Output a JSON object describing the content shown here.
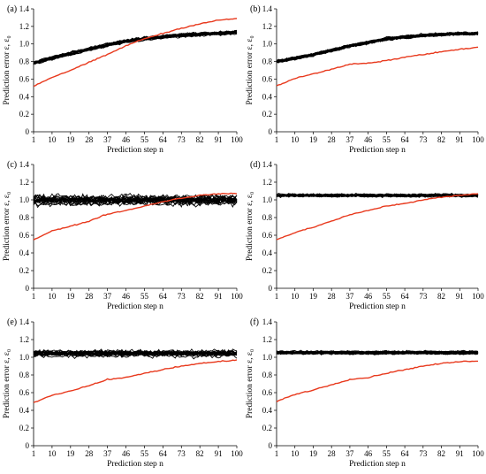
{
  "figure": {
    "panels_order": [
      "a",
      "b",
      "c",
      "d",
      "e",
      "f"
    ]
  },
  "chart_data": [
    {
      "id": "a",
      "panel_label": "(a)",
      "type": "line",
      "xlabel": "Prediction step n",
      "ylabel": "Prediction error ε, ε₀",
      "xticks": [
        1,
        10,
        19,
        28,
        37,
        46,
        55,
        64,
        73,
        82,
        91,
        100
      ],
      "yticks": [
        "0",
        "0.2",
        "0.4",
        "0.6",
        "0.8",
        "1.0",
        "1.2",
        "1.4"
      ],
      "xlim": [
        1,
        100
      ],
      "ylim": [
        0,
        1.4
      ],
      "black_series": {
        "count": 20,
        "color": "#000000",
        "band": "narrow",
        "mean_points": [
          [
            1,
            0.78
          ],
          [
            10,
            0.84
          ],
          [
            19,
            0.89
          ],
          [
            28,
            0.94
          ],
          [
            37,
            0.99
          ],
          [
            46,
            1.03
          ],
          [
            55,
            1.06
          ],
          [
            64,
            1.08
          ],
          [
            73,
            1.1
          ],
          [
            82,
            1.11
          ],
          [
            91,
            1.12
          ],
          [
            100,
            1.13
          ]
        ]
      },
      "red_series": {
        "color": "#e8391d",
        "points": [
          [
            1,
            0.52
          ],
          [
            10,
            0.62
          ],
          [
            19,
            0.7
          ],
          [
            28,
            0.79
          ],
          [
            37,
            0.88
          ],
          [
            46,
            0.98
          ],
          [
            55,
            1.06
          ],
          [
            64,
            1.12
          ],
          [
            73,
            1.18
          ],
          [
            82,
            1.23
          ],
          [
            91,
            1.27
          ],
          [
            100,
            1.29
          ]
        ]
      }
    },
    {
      "id": "b",
      "panel_label": "(b)",
      "type": "line",
      "xlabel": "Prediction step n",
      "ylabel": "Prediction error ε, ε₀",
      "xticks": [
        1,
        10,
        19,
        28,
        37,
        46,
        55,
        64,
        73,
        82,
        91,
        100
      ],
      "yticks": [
        "0",
        "0.2",
        "0.4",
        "0.6",
        "0.8",
        "1.0",
        "1.2",
        "1.4"
      ],
      "xlim": [
        1,
        100
      ],
      "ylim": [
        0,
        1.4
      ],
      "black_series": {
        "count": 20,
        "color": "#000000",
        "band": "narrow",
        "mean_points": [
          [
            1,
            0.8
          ],
          [
            10,
            0.84
          ],
          [
            19,
            0.88
          ],
          [
            28,
            0.93
          ],
          [
            37,
            0.98
          ],
          [
            46,
            1.02
          ],
          [
            55,
            1.06
          ],
          [
            64,
            1.08
          ],
          [
            73,
            1.1
          ],
          [
            82,
            1.11
          ],
          [
            91,
            1.12
          ],
          [
            100,
            1.12
          ]
        ]
      },
      "red_series": {
        "color": "#e8391d",
        "points": [
          [
            1,
            0.52
          ],
          [
            10,
            0.61
          ],
          [
            19,
            0.66
          ],
          [
            28,
            0.71
          ],
          [
            37,
            0.77
          ],
          [
            46,
            0.78
          ],
          [
            55,
            0.81
          ],
          [
            64,
            0.85
          ],
          [
            73,
            0.88
          ],
          [
            82,
            0.91
          ],
          [
            91,
            0.94
          ],
          [
            100,
            0.96
          ]
        ]
      }
    },
    {
      "id": "c",
      "panel_label": "(c)",
      "type": "line",
      "xlabel": "Prediction step n",
      "ylabel": "Prediction error ε, ε₀",
      "xticks": [
        1,
        10,
        19,
        28,
        37,
        46,
        55,
        64,
        73,
        82,
        91,
        100
      ],
      "yticks": [
        "0",
        "0.2",
        "0.4",
        "0.6",
        "0.8",
        "1.0",
        "1.2",
        "1.4"
      ],
      "xlim": [
        1,
        100
      ],
      "ylim": [
        0,
        1.4
      ],
      "black_series": {
        "count": 20,
        "color": "#000000",
        "band": "wide",
        "mean_points": [
          [
            1,
            1.0
          ],
          [
            100,
            1.0
          ]
        ]
      },
      "red_series": {
        "color": "#e8391d",
        "points": [
          [
            1,
            0.55
          ],
          [
            10,
            0.65
          ],
          [
            19,
            0.7
          ],
          [
            28,
            0.76
          ],
          [
            37,
            0.84
          ],
          [
            46,
            0.88
          ],
          [
            55,
            0.93
          ],
          [
            64,
            0.98
          ],
          [
            73,
            1.02
          ],
          [
            82,
            1.05
          ],
          [
            91,
            1.07
          ],
          [
            100,
            1.07
          ]
        ]
      }
    },
    {
      "id": "d",
      "panel_label": "(d)",
      "type": "line",
      "xlabel": "Prediction step n",
      "ylabel": "Prediction error ε, ε₀",
      "xticks": [
        1,
        10,
        19,
        28,
        37,
        46,
        55,
        64,
        73,
        82,
        91,
        100
      ],
      "yticks": [
        "0",
        "0.2",
        "0.4",
        "0.6",
        "0.8",
        "1.0",
        "1.2",
        "1.4"
      ],
      "xlim": [
        1,
        100
      ],
      "ylim": [
        0,
        1.4
      ],
      "black_series": {
        "count": 20,
        "color": "#000000",
        "band": "narrow",
        "mean_points": [
          [
            1,
            1.05
          ],
          [
            100,
            1.05
          ]
        ]
      },
      "red_series": {
        "color": "#e8391d",
        "points": [
          [
            1,
            0.55
          ],
          [
            10,
            0.63
          ],
          [
            19,
            0.69
          ],
          [
            28,
            0.76
          ],
          [
            37,
            0.83
          ],
          [
            46,
            0.88
          ],
          [
            55,
            0.93
          ],
          [
            64,
            0.96
          ],
          [
            73,
            1.0
          ],
          [
            82,
            1.03
          ],
          [
            91,
            1.05
          ],
          [
            100,
            1.07
          ]
        ]
      }
    },
    {
      "id": "e",
      "panel_label": "(e)",
      "type": "line",
      "xlabel": "Prediction step n",
      "ylabel": "Prediction error ε, ε₀",
      "xticks": [
        1,
        10,
        19,
        28,
        37,
        46,
        55,
        64,
        73,
        82,
        91,
        100
      ],
      "yticks": [
        "0",
        "0.2",
        "0.4",
        "0.6",
        "0.8",
        "1.0",
        "1.2",
        "1.4"
      ],
      "xlim": [
        1,
        100
      ],
      "ylim": [
        0,
        1.4
      ],
      "black_series": {
        "count": 20,
        "color": "#000000",
        "band": "medium",
        "mean_points": [
          [
            1,
            1.04
          ],
          [
            100,
            1.04
          ]
        ]
      },
      "red_series": {
        "color": "#e8391d",
        "points": [
          [
            1,
            0.49
          ],
          [
            10,
            0.57
          ],
          [
            19,
            0.62
          ],
          [
            28,
            0.68
          ],
          [
            37,
            0.75
          ],
          [
            46,
            0.77
          ],
          [
            55,
            0.82
          ],
          [
            64,
            0.86
          ],
          [
            73,
            0.9
          ],
          [
            82,
            0.93
          ],
          [
            91,
            0.95
          ],
          [
            100,
            0.97
          ]
        ]
      }
    },
    {
      "id": "f",
      "panel_label": "(f)",
      "type": "line",
      "xlabel": "Prediction step n",
      "ylabel": "Prediction error ε, ε₀",
      "xticks": [
        1,
        10,
        19,
        28,
        37,
        46,
        55,
        64,
        73,
        82,
        91,
        100
      ],
      "yticks": [
        "0",
        "0.2",
        "0.4",
        "0.6",
        "0.8",
        "1.0",
        "1.2",
        "1.4"
      ],
      "xlim": [
        1,
        100
      ],
      "ylim": [
        0,
        1.4
      ],
      "black_series": {
        "count": 20,
        "color": "#000000",
        "band": "narrow",
        "mean_points": [
          [
            1,
            1.05
          ],
          [
            100,
            1.05
          ]
        ]
      },
      "red_series": {
        "color": "#e8391d",
        "points": [
          [
            1,
            0.5
          ],
          [
            10,
            0.58
          ],
          [
            19,
            0.63
          ],
          [
            28,
            0.69
          ],
          [
            37,
            0.75
          ],
          [
            46,
            0.77
          ],
          [
            55,
            0.82
          ],
          [
            64,
            0.86
          ],
          [
            73,
            0.9
          ],
          [
            82,
            0.93
          ],
          [
            91,
            0.95
          ],
          [
            100,
            0.96
          ]
        ]
      }
    }
  ]
}
